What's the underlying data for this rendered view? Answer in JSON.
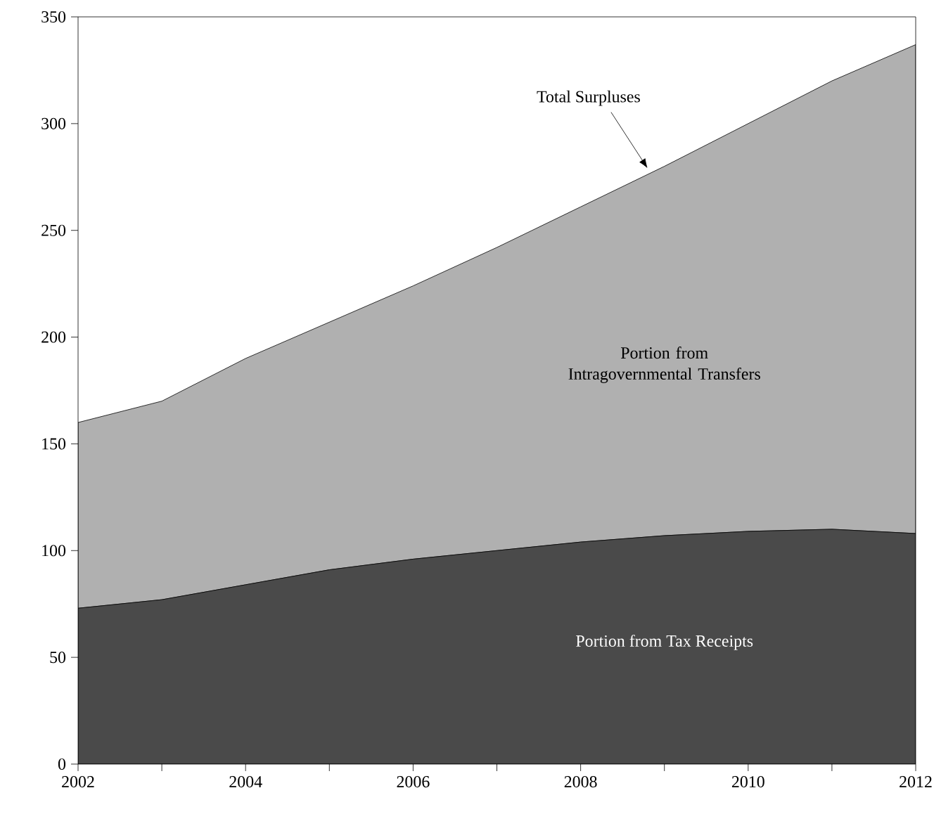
{
  "chart_data": {
    "type": "area",
    "stacked": true,
    "x": [
      2002,
      2003,
      2004,
      2005,
      2006,
      2007,
      2008,
      2009,
      2010,
      2011,
      2012
    ],
    "series": [
      {
        "name": "Portion from Tax Receipts",
        "color": "#4a4a4a",
        "values": [
          73,
          77,
          84,
          91,
          96,
          100,
          104,
          107,
          109,
          110,
          108
        ]
      },
      {
        "name": "Portion from Intragovernmental Transfers",
        "color": "#b0b0b0",
        "values": [
          87,
          93,
          106,
          116,
          128,
          142,
          157,
          173,
          191,
          210,
          229
        ]
      }
    ],
    "xlim": [
      2002,
      2012
    ],
    "xticks": [
      2002,
      {
        "value": 2003,
        "label": null
      },
      2004,
      {
        "value": 2005,
        "label": null
      },
      2006,
      {
        "value": 2007,
        "label": null
      },
      2008,
      {
        "value": 2009,
        "label": null
      },
      2010,
      {
        "value": 2011,
        "label": null
      },
      2012
    ],
    "ylim": [
      0,
      350
    ],
    "yticks": [
      0,
      50,
      100,
      150,
      200,
      250,
      300,
      350
    ],
    "annotations": [
      {
        "text": "Total Surpluses",
        "x": 2008.8,
        "y": 279
      }
    ]
  }
}
